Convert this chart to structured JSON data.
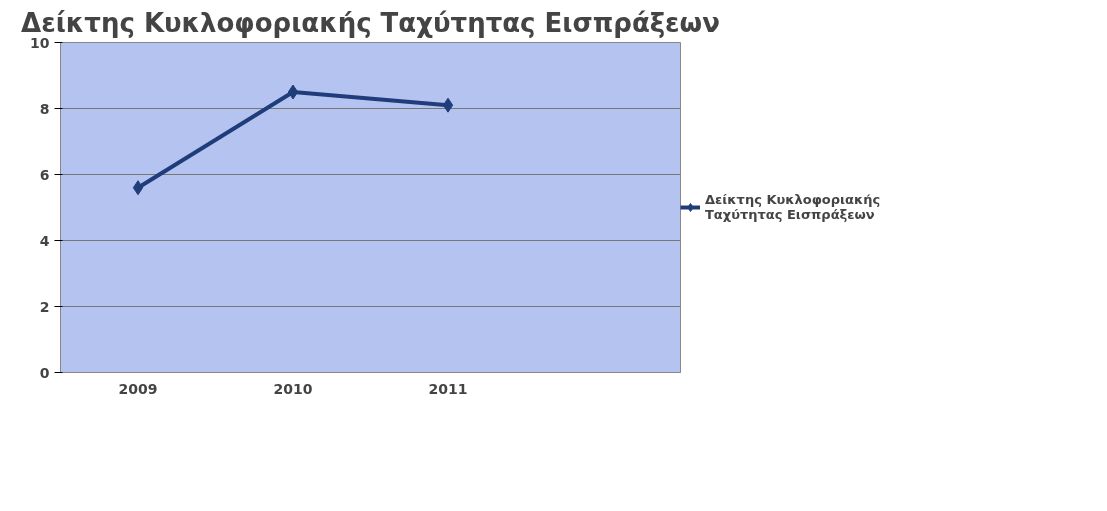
{
  "chart_data": {
    "type": "line",
    "title": "Δείκτης Κυκλοφοριακής Ταχύτητας Εισπράξεων",
    "categories": [
      "2009",
      "2010",
      "2011",
      null
    ],
    "series": [
      {
        "name": "Δείκτης Κυκλοφοριακής Ταχύτητας Εισπράξεων",
        "color": "#1f3d7a",
        "values": [
          5.6,
          8.5,
          8.1,
          null
        ]
      }
    ],
    "ylim": [
      0,
      10
    ],
    "yticks": [
      0,
      2,
      4,
      6,
      8,
      10
    ],
    "grid": "y",
    "legend": "right",
    "marker": "diamond",
    "line_style": "solid"
  }
}
